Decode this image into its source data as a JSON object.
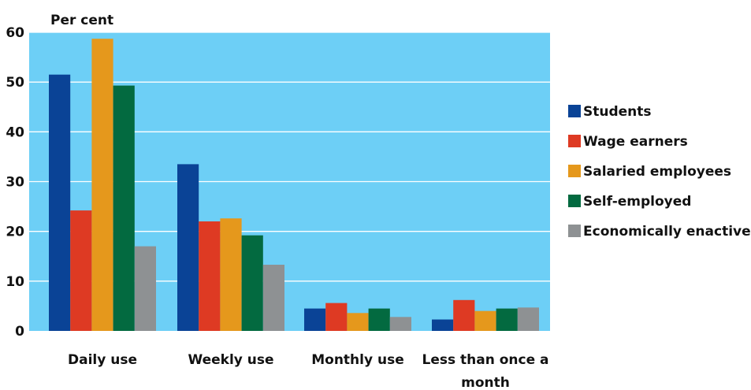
{
  "chart_data": {
    "type": "bar",
    "title": "",
    "ylabel": "Per cent",
    "xlabel": "",
    "ylim": [
      0,
      60
    ],
    "yticks": [
      0,
      10,
      20,
      30,
      40,
      50,
      60
    ],
    "grid": true,
    "legend_position": "right",
    "plot_background": "#6DCFF6",
    "categories": [
      [
        "Daily use"
      ],
      [
        "Weekly use"
      ],
      [
        "Monthly use"
      ],
      [
        "Less than once a",
        "month"
      ]
    ],
    "series": [
      {
        "name": "Students",
        "color": "#0A4396",
        "values": [
          51.5,
          33.5,
          4.5,
          2.3
        ]
      },
      {
        "name": "Wage earners",
        "color": "#DE3A23",
        "values": [
          24.2,
          22.0,
          5.6,
          6.2
        ]
      },
      {
        "name": "Salaried employees",
        "color": "#E5981C",
        "values": [
          58.7,
          22.6,
          3.6,
          4.0
        ]
      },
      {
        "name": "Self-employed",
        "color": "#036A40",
        "values": [
          49.3,
          19.2,
          4.5,
          4.5
        ]
      },
      {
        "name": "Economically enactive",
        "color": "#8E9193",
        "values": [
          17.0,
          13.3,
          2.8,
          4.7
        ]
      }
    ]
  }
}
